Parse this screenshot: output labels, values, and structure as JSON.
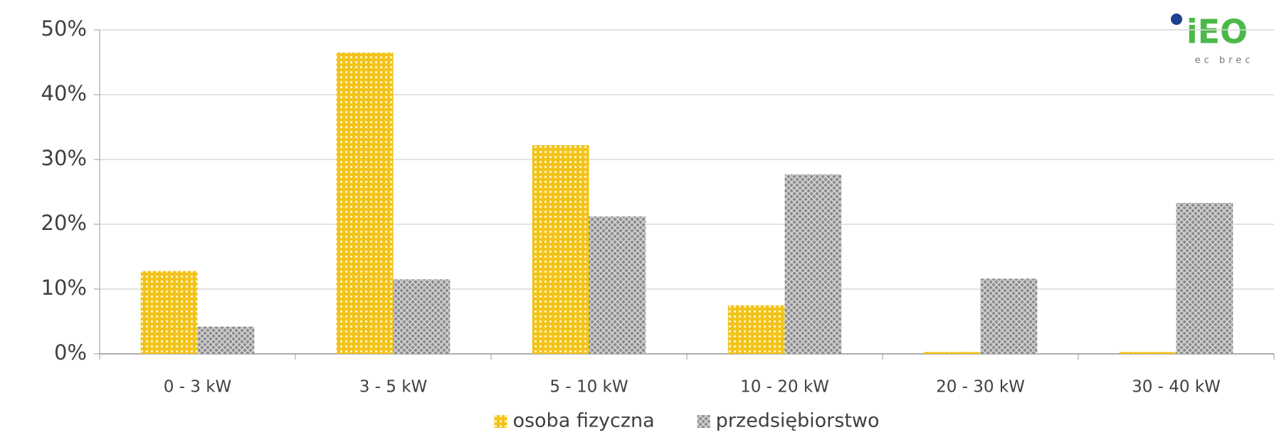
{
  "chart_data": {
    "type": "bar",
    "categories": [
      "0 - 3 kW",
      "3 - 5 kW",
      "5 - 10 kW",
      "10 - 20 kW",
      "20 - 30 kW",
      "30 - 40 kW"
    ],
    "series": [
      {
        "name": "osoba fizyczna",
        "color": "#f2c31a",
        "values": [
          12.8,
          46.5,
          32.2,
          7.5,
          0.3,
          0.3
        ]
      },
      {
        "name": "przedsiębiorstwo",
        "color": "#8c8c8c",
        "values": [
          4.2,
          11.5,
          21.2,
          27.7,
          11.6,
          23.3
        ]
      }
    ],
    "ylim": [
      0,
      50
    ],
    "yticks": [
      {
        "value": 0,
        "label": "0%"
      },
      {
        "value": 10,
        "label": "10%"
      },
      {
        "value": 20,
        "label": "20%"
      },
      {
        "value": 30,
        "label": "30%"
      },
      {
        "value": 40,
        "label": "40%"
      },
      {
        "value": 50,
        "label": "50%"
      }
    ],
    "grid": true,
    "legend": "bottom",
    "logo": {
      "name": "iEO",
      "tagline": "ec brec"
    }
  }
}
